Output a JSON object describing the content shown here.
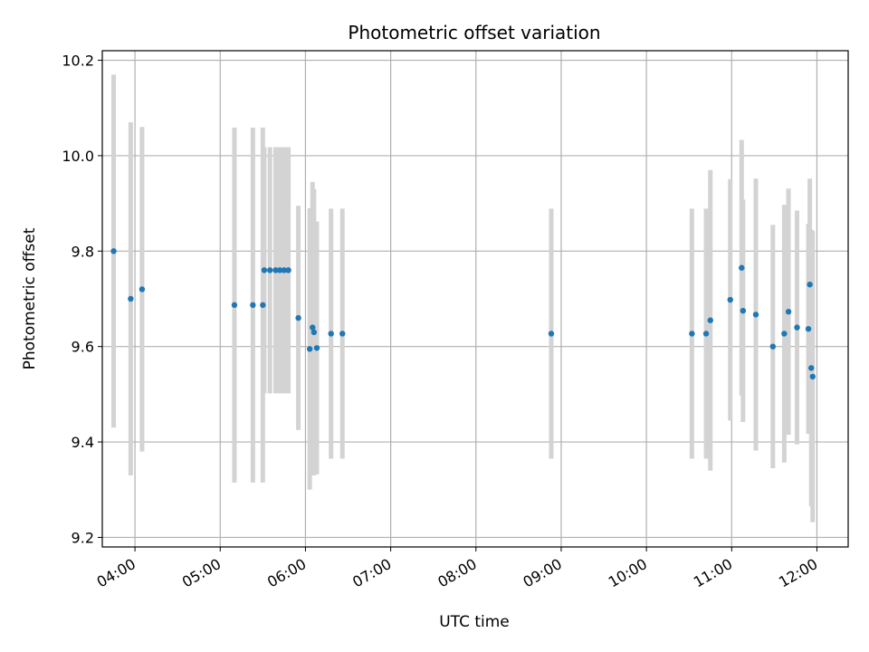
{
  "chart_data": {
    "type": "scatter",
    "title": "Photometric offset variation",
    "xlabel": "UTC time",
    "ylabel": "Photometric offset",
    "x_ticks": [
      "04:00",
      "05:00",
      "06:00",
      "07:00",
      "08:00",
      "09:00",
      "10:00",
      "11:00",
      "12:00"
    ],
    "y_ticks": [
      "9.2",
      "9.4",
      "9.6",
      "9.8",
      "10.0",
      "10.2"
    ],
    "xlim": [
      "03:37",
      "12:22"
    ],
    "ylim": [
      9.18,
      10.22
    ],
    "grid": true,
    "marker_color": "#1f77b4",
    "errorbar_color": "#d3d3d3",
    "points": [
      {
        "x": "03:45",
        "y": 9.8,
        "err": 0.37
      },
      {
        "x": "03:57",
        "y": 9.7,
        "err": 0.37
      },
      {
        "x": "04:05",
        "y": 9.72,
        "err": 0.34
      },
      {
        "x": "05:10",
        "y": 9.687,
        "err": 0.372
      },
      {
        "x": "05:23",
        "y": 9.687,
        "err": 0.372
      },
      {
        "x": "05:30",
        "y": 9.687,
        "err": 0.372
      },
      {
        "x": "05:31",
        "y": 9.76,
        "err": 0.258
      },
      {
        "x": "05:35",
        "y": 9.76,
        "err": 0.258
      },
      {
        "x": "05:39",
        "y": 9.76,
        "err": 0.258
      },
      {
        "x": "05:42",
        "y": 9.76,
        "err": 0.258
      },
      {
        "x": "05:45",
        "y": 9.76,
        "err": 0.258
      },
      {
        "x": "05:48",
        "y": 9.76,
        "err": 0.258
      },
      {
        "x": "05:55",
        "y": 9.66,
        "err": 0.235
      },
      {
        "x": "06:03",
        "y": 9.595,
        "err": 0.295
      },
      {
        "x": "06:05",
        "y": 9.64,
        "err": 0.305
      },
      {
        "x": "06:06",
        "y": 9.63,
        "err": 0.3
      },
      {
        "x": "06:08",
        "y": 9.597,
        "err": 0.265
      },
      {
        "x": "06:18",
        "y": 9.627,
        "err": 0.262
      },
      {
        "x": "06:26",
        "y": 9.627,
        "err": 0.262
      },
      {
        "x": "08:53",
        "y": 9.627,
        "err": 0.262
      },
      {
        "x": "10:32",
        "y": 9.627,
        "err": 0.262
      },
      {
        "x": "10:42",
        "y": 9.627,
        "err": 0.262
      },
      {
        "x": "10:45",
        "y": 9.655,
        "err": 0.315
      },
      {
        "x": "10:59",
        "y": 9.698,
        "err": 0.253
      },
      {
        "x": "11:07",
        "y": 9.765,
        "err": 0.268
      },
      {
        "x": "11:08",
        "y": 9.675,
        "err": 0.233
      },
      {
        "x": "11:17",
        "y": 9.667,
        "err": 0.285
      },
      {
        "x": "11:29",
        "y": 9.6,
        "err": 0.255
      },
      {
        "x": "11:37",
        "y": 9.627,
        "err": 0.27
      },
      {
        "x": "11:40",
        "y": 9.673,
        "err": 0.258
      },
      {
        "x": "11:46",
        "y": 9.64,
        "err": 0.245
      },
      {
        "x": "11:54",
        "y": 9.637,
        "err": 0.22
      },
      {
        "x": "11:55",
        "y": 9.73,
        "err": 0.222
      },
      {
        "x": "11:56",
        "y": 9.555,
        "err": 0.29
      },
      {
        "x": "11:57",
        "y": 9.537,
        "err": 0.305
      }
    ]
  }
}
